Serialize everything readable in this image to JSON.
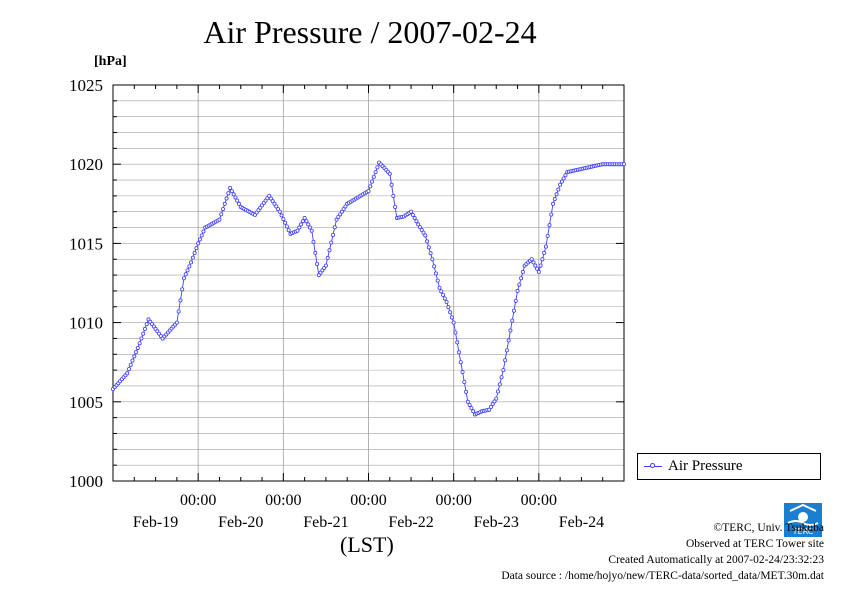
{
  "title": "Air Pressure / 2007-02-24",
  "legend": {
    "label": "Air Pressure"
  },
  "credits": {
    "line1": "©TERC, Univ. Tsukuba",
    "line2": "Observed at TERC Tower site",
    "line3": "Created Automatically at 2007-02-24/23:32:23",
    "line4": "Data source : /home/hojyo/new/TERC-data/sorted_data/MET.30m.dat"
  },
  "logo": {
    "text": "TERC"
  },
  "colors": {
    "series": "#4040ff",
    "grid": "#a0a0a0"
  },
  "chart_data": {
    "type": "line",
    "title": "Air Pressure / 2007-02-24",
    "ylabel": "[hPa]",
    "xlabel": "(LST)",
    "ylim": [
      1000,
      1025
    ],
    "yticks": [
      1000,
      1005,
      1010,
      1015,
      1020,
      1025
    ],
    "ytick_labels": [
      "1000",
      "1005",
      "1010",
      "1015",
      "1020",
      "1025"
    ],
    "xlim_hours": [
      0,
      144
    ],
    "xticks_time": [
      "00:00",
      "00:00",
      "00:00",
      "00:00",
      "00:00"
    ],
    "xticks_date": [
      "Feb-19",
      "Feb-20",
      "Feb-21",
      "Feb-22",
      "Feb-23",
      "Feb-24"
    ],
    "grid": true,
    "legend_position": "right",
    "series": [
      {
        "name": "Air Pressure",
        "x_hours": [
          0,
          4,
          7,
          10,
          14,
          18,
          20,
          22,
          24,
          26,
          30,
          33,
          36,
          40,
          44,
          47,
          50,
          52,
          54,
          56,
          58,
          60,
          63,
          66,
          69,
          72,
          75,
          78,
          80,
          82,
          84,
          86,
          88,
          90,
          92,
          94,
          96,
          98,
          100,
          102,
          104,
          106,
          108,
          110,
          112,
          114,
          116,
          118,
          120,
          122,
          124,
          126,
          128,
          130,
          132,
          134,
          136,
          138,
          140,
          142,
          144
        ],
        "values": [
          1005.8,
          1006.8,
          1008.4,
          1010.2,
          1009.0,
          1010.0,
          1012.8,
          1013.8,
          1015.0,
          1016.0,
          1016.5,
          1018.5,
          1017.3,
          1016.8,
          1018.0,
          1017.0,
          1015.6,
          1015.8,
          1016.6,
          1015.8,
          1013.0,
          1013.6,
          1016.5,
          1017.5,
          1017.9,
          1018.3,
          1020.1,
          1019.4,
          1016.6,
          1016.7,
          1017.0,
          1016.2,
          1015.5,
          1014.0,
          1012.2,
          1011.3,
          1010.0,
          1007.5,
          1005.0,
          1004.2,
          1004.4,
          1004.5,
          1005.2,
          1007.0,
          1009.5,
          1012.0,
          1013.6,
          1014.0,
          1013.2,
          1014.8,
          1017.5,
          1018.7,
          1019.5,
          1019.6,
          1019.7,
          1019.8,
          1019.9,
          1020.0,
          1020.0,
          1020.0,
          1020.0
        ]
      }
    ]
  }
}
